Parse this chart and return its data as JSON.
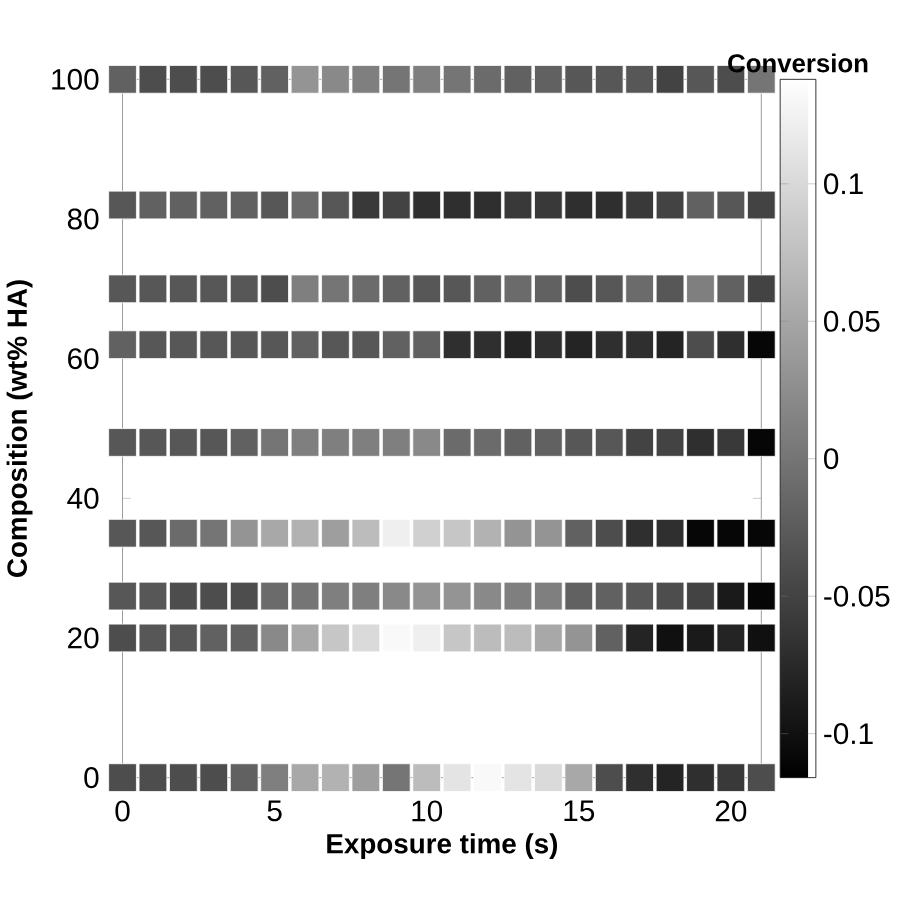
{
  "chart_data": {
    "type": "scatter",
    "xlabel": "Exposure time (s)",
    "ylabel": "Composition (wt% HA)",
    "clabel": "Conversion",
    "xlim": [
      0,
      21
    ],
    "ylim": [
      0,
      100
    ],
    "xticks": [
      0,
      5,
      10,
      15,
      20
    ],
    "yticks": [
      0,
      20,
      40,
      60,
      80,
      100
    ],
    "clim": [
      -0.116,
      0.138
    ],
    "cticks": [
      -0.1,
      -0.05,
      0,
      0.05,
      0.1
    ],
    "marker": "square",
    "x": [
      0,
      1,
      2,
      3,
      4,
      5,
      6,
      7,
      8,
      9,
      10,
      11,
      12,
      13,
      14,
      15,
      16,
      17,
      18,
      19,
      20,
      21,
      0,
      1,
      2,
      3,
      4,
      5,
      6,
      7,
      8,
      9,
      10,
      11,
      12,
      13,
      14,
      15,
      16,
      17,
      18,
      19,
      20,
      21,
      0,
      1,
      2,
      3,
      4,
      5,
      6,
      7,
      8,
      9,
      10,
      11,
      12,
      13,
      14,
      15,
      16,
      17,
      18,
      19,
      20,
      21,
      0,
      1,
      2,
      3,
      4,
      5,
      6,
      7,
      8,
      9,
      10,
      11,
      12,
      13,
      14,
      15,
      16,
      17,
      18,
      19,
      20,
      21,
      0,
      1,
      2,
      3,
      4,
      5,
      6,
      7,
      8,
      9,
      10,
      11,
      12,
      13,
      14,
      15,
      16,
      17,
      18,
      19,
      20,
      21,
      0,
      1,
      2,
      3,
      4,
      5,
      6,
      7,
      8,
      9,
      10,
      11,
      12,
      13,
      14,
      15,
      16,
      17,
      18,
      19,
      20,
      21,
      0,
      1,
      2,
      3,
      4,
      5,
      6,
      7,
      8,
      9,
      10,
      11,
      12,
      13,
      14,
      15,
      16,
      17,
      18,
      19,
      20,
      21,
      0,
      1,
      2,
      3,
      4,
      5,
      6,
      7,
      8,
      9,
      10,
      11,
      12,
      13,
      14,
      15,
      16,
      17,
      18,
      19,
      20,
      21,
      0,
      1,
      2,
      3,
      4,
      5,
      6,
      7,
      8,
      9,
      10,
      11,
      12,
      13,
      14,
      15,
      16,
      17,
      18,
      19,
      20,
      21
    ],
    "values": [
      100,
      100,
      100,
      100,
      100,
      100,
      100,
      100,
      100,
      100,
      100,
      100,
      100,
      100,
      100,
      100,
      100,
      100,
      100,
      100,
      100,
      100,
      82,
      82,
      82,
      82,
      82,
      82,
      82,
      82,
      82,
      82,
      82,
      82,
      82,
      82,
      82,
      82,
      82,
      82,
      82,
      82,
      82,
      82,
      70,
      70,
      70,
      70,
      70,
      70,
      70,
      70,
      70,
      70,
      70,
      70,
      70,
      70,
      70,
      70,
      70,
      70,
      70,
      70,
      70,
      70,
      62,
      62,
      62,
      62,
      62,
      62,
      62,
      62,
      62,
      62,
      62,
      62,
      62,
      62,
      62,
      62,
      62,
      62,
      62,
      62,
      62,
      62,
      48,
      48,
      48,
      48,
      48,
      48,
      48,
      48,
      48,
      48,
      48,
      48,
      48,
      48,
      48,
      48,
      48,
      48,
      48,
      48,
      48,
      48,
      35,
      35,
      35,
      35,
      35,
      35,
      35,
      35,
      35,
      35,
      35,
      35,
      35,
      35,
      35,
      35,
      35,
      35,
      35,
      35,
      35,
      35,
      26,
      26,
      26,
      26,
      26,
      26,
      26,
      26,
      26,
      26,
      26,
      26,
      26,
      26,
      26,
      26,
      26,
      26,
      26,
      26,
      26,
      26,
      20,
      20,
      20,
      20,
      20,
      20,
      20,
      20,
      20,
      20,
      20,
      20,
      20,
      20,
      20,
      20,
      20,
      20,
      20,
      20,
      20,
      20,
      0,
      0,
      0,
      0,
      0,
      0,
      0,
      0,
      0,
      0,
      0,
      0,
      0,
      0,
      0,
      0,
      0,
      0,
      0,
      0,
      0,
      0
    ],
    "cvalues": [
      -0.02,
      -0.04,
      -0.04,
      -0.04,
      -0.03,
      -0.02,
      0.03,
      0.02,
      0.01,
      0.0,
      0.01,
      0.0,
      -0.01,
      -0.02,
      -0.02,
      -0.03,
      -0.03,
      -0.03,
      -0.05,
      -0.03,
      -0.04,
      0.0,
      -0.03,
      -0.02,
      -0.02,
      -0.02,
      -0.02,
      -0.03,
      -0.01,
      -0.03,
      -0.06,
      -0.05,
      -0.07,
      -0.07,
      -0.07,
      -0.06,
      -0.06,
      -0.07,
      -0.07,
      -0.06,
      -0.05,
      -0.02,
      -0.03,
      -0.05,
      -0.03,
      -0.03,
      -0.03,
      -0.03,
      -0.03,
      -0.04,
      0.01,
      0.0,
      -0.01,
      -0.02,
      -0.03,
      -0.03,
      -0.02,
      -0.01,
      -0.02,
      -0.04,
      -0.03,
      -0.01,
      -0.03,
      0.01,
      -0.02,
      -0.05,
      -0.02,
      -0.03,
      -0.03,
      -0.03,
      -0.03,
      -0.03,
      -0.02,
      -0.03,
      -0.03,
      -0.02,
      -0.02,
      -0.07,
      -0.07,
      -0.08,
      -0.07,
      -0.08,
      -0.07,
      -0.07,
      -0.08,
      -0.04,
      -0.07,
      -0.11,
      -0.03,
      -0.03,
      -0.03,
      -0.03,
      -0.02,
      0.0,
      0.01,
      0.01,
      0.01,
      0.01,
      0.02,
      -0.01,
      -0.01,
      -0.02,
      -0.02,
      -0.03,
      -0.03,
      -0.05,
      -0.05,
      -0.07,
      -0.06,
      -0.11,
      -0.03,
      -0.03,
      -0.01,
      0.0,
      0.03,
      0.05,
      0.06,
      0.04,
      0.07,
      0.12,
      0.09,
      0.08,
      0.06,
      0.03,
      0.03,
      -0.02,
      -0.04,
      -0.07,
      -0.07,
      -0.11,
      -0.11,
      -0.11,
      -0.03,
      -0.03,
      -0.04,
      -0.04,
      -0.04,
      -0.01,
      0.0,
      0.01,
      0.01,
      0.02,
      0.03,
      0.03,
      0.02,
      0.01,
      0.01,
      -0.02,
      -0.02,
      -0.03,
      -0.04,
      -0.05,
      -0.09,
      -0.11,
      -0.04,
      -0.03,
      -0.03,
      -0.02,
      -0.02,
      0.02,
      0.05,
      0.08,
      0.1,
      0.13,
      0.12,
      0.08,
      0.07,
      0.07,
      0.05,
      0.03,
      -0.02,
      -0.08,
      -0.1,
      -0.09,
      -0.08,
      -0.1,
      -0.04,
      -0.04,
      -0.04,
      -0.04,
      -0.02,
      0.01,
      0.05,
      0.06,
      0.04,
      0.0,
      0.07,
      0.11,
      0.13,
      0.11,
      0.1,
      0.05,
      -0.04,
      -0.07,
      -0.08,
      -0.07,
      -0.06,
      -0.04
    ]
  }
}
